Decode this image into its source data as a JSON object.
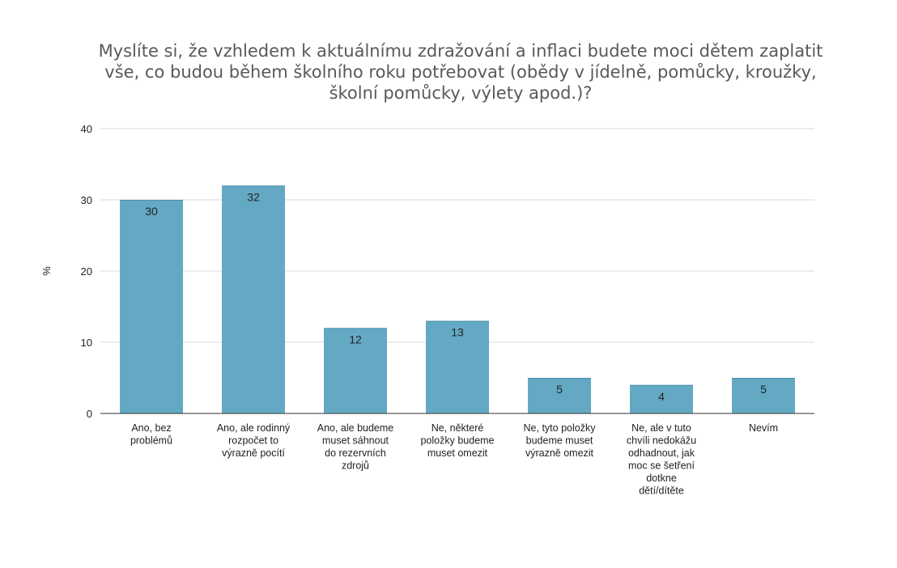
{
  "chart_data": {
    "type": "bar",
    "title": "Myslíte si, že vzhledem k aktuálnímu zdražování a inflaci budete moci dětem zaplatit vše, co budou během školního roku potřebovat (obědy v jídelně, pomůcky, kroužky, školní pomůcky, výlety apod.)?",
    "xlabel": "",
    "ylabel": "%",
    "ylim": [
      0,
      40
    ],
    "yticks": [
      "0",
      "10",
      "20",
      "30",
      "40"
    ],
    "grid": true,
    "bar_color": "#64a9c4",
    "categories": [
      [
        "Ano, bez",
        "problémů"
      ],
      [
        "Ano, ale rodinný",
        "rozpočet to",
        "výrazně pocítí"
      ],
      [
        "Ano, ale budeme",
        "muset sáhnout",
        "do rezervních",
        "zdrojů"
      ],
      [
        "Ne, některé",
        "položky budeme",
        "muset omezit"
      ],
      [
        "Ne, tyto položky",
        "budeme muset",
        "výrazně omezit"
      ],
      [
        "Ne, ale v tuto",
        "chvíli nedokážu",
        "odhadnout, jak",
        "moc se šetření",
        "dotkne",
        "dětí/dítěte"
      ],
      [
        "Nevím"
      ]
    ],
    "values": [
      30,
      32,
      12,
      13,
      5,
      4,
      5
    ],
    "data_labels": [
      "30",
      "32",
      "12",
      "13",
      "5",
      "4",
      "5"
    ]
  }
}
